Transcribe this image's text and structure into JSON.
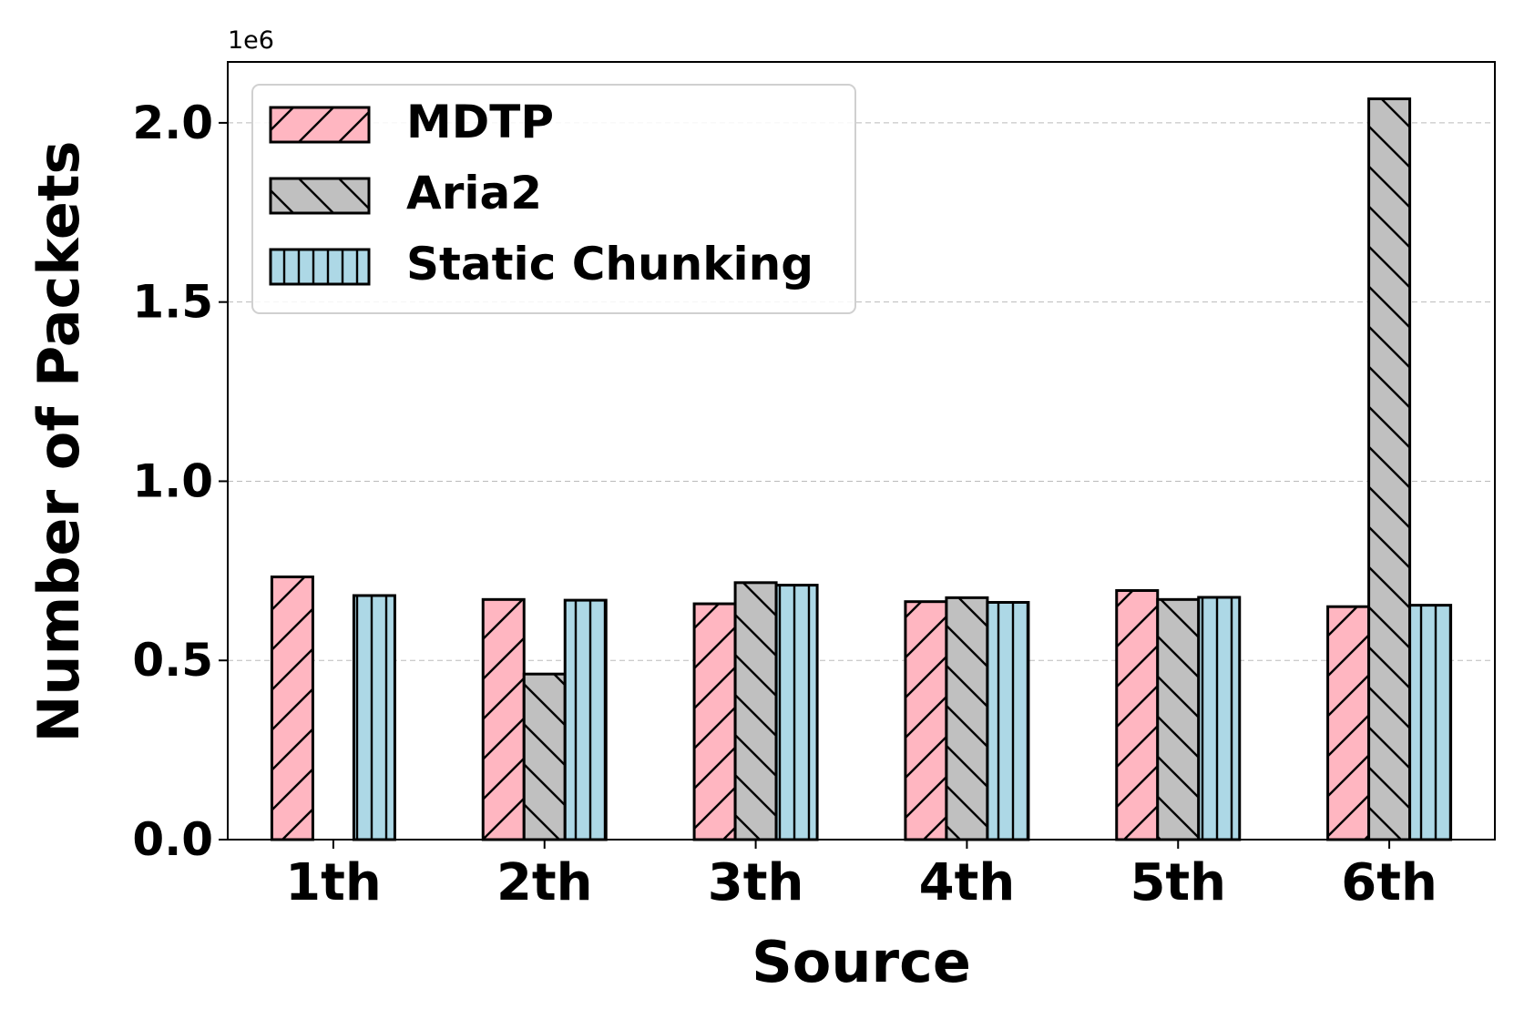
{
  "chart_data": {
    "type": "bar",
    "categories": [
      "1th",
      "2th",
      "3th",
      "4th",
      "5th",
      "6th"
    ],
    "series": [
      {
        "name": "MDTP",
        "values": [
          733000,
          670000,
          658000,
          664000,
          695000,
          650000
        ],
        "color": "#ffb6c1",
        "hatch": "forward-diagonal"
      },
      {
        "name": "Aria2",
        "values": [
          0,
          462000,
          717000,
          675000,
          670000,
          2067000
        ],
        "color": "#c0c0c0",
        "hatch": "back-diagonal"
      },
      {
        "name": "Static Chunking",
        "values": [
          681000,
          668000,
          710000,
          662000,
          676000,
          654000
        ],
        "color": "#add8e6",
        "hatch": "vertical"
      }
    ],
    "xlabel": "Source",
    "ylabel": "Number of Packets",
    "y_offset_label": "1e6",
    "ylim": [
      0,
      2170000
    ],
    "yticks": [
      0,
      500000,
      1000000,
      1500000,
      2000000
    ],
    "ytick_labels": [
      "0.0",
      "0.5",
      "1.0",
      "1.5",
      "2.0"
    ],
    "grid": "horizontal-dashed",
    "legend_position": "top-left"
  }
}
